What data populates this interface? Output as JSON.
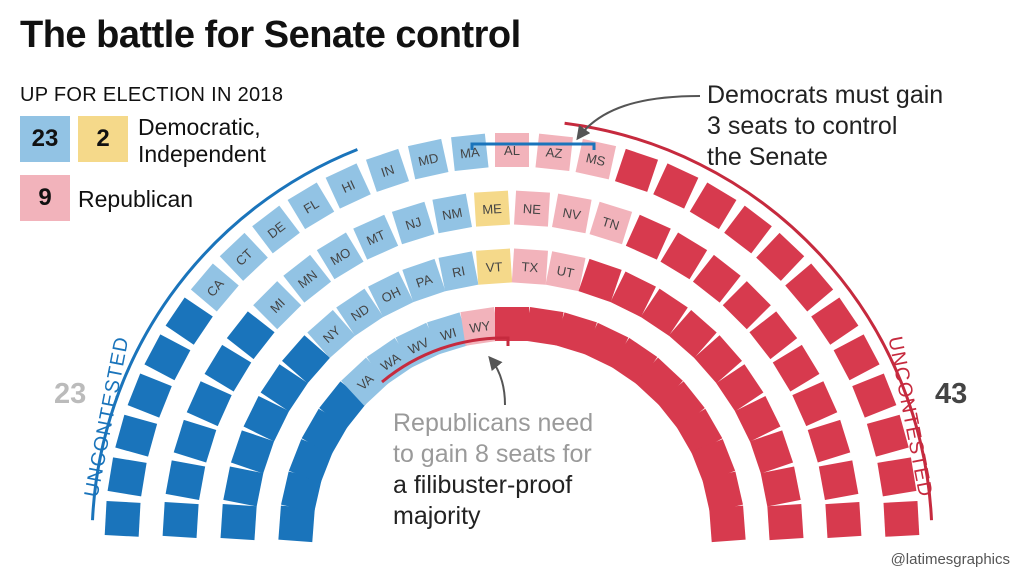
{
  "title": "The battle for Senate control",
  "legend": {
    "heading": "UP FOR ELECTION IN 2018",
    "items": [
      {
        "count": "23",
        "color": "#92c3e4"
      },
      {
        "count": "2",
        "color": "#f5d98a"
      },
      {
        "count": "9",
        "color": "#f2b3bb"
      }
    ],
    "dem_ind_label": [
      "Democratic,",
      "Independent"
    ],
    "rep_label": "Republican"
  },
  "side_labels": {
    "left_total": "23",
    "right_total": "43",
    "left_uncontested": "UNCONTESTED",
    "right_uncontested": "UNCONTESTED"
  },
  "annotations": {
    "democrats": [
      "Democrats must gain",
      "3 seats to control",
      "the Senate"
    ],
    "republicans": [
      "Republicans need",
      "to gain 8 seats for",
      "a filibuster-proof",
      "majority"
    ]
  },
  "credit": "@latimesgraphics",
  "colors": {
    "dem_uncontested": "#1a74bb",
    "dem_up": "#92c3e4",
    "ind_up": "#f5d98a",
    "rep_up": "#f2b3bb",
    "rep_uncontested": "#d73a4e",
    "arrow_blue": "#1a74bb",
    "arrow_red": "#c62a3e"
  },
  "chart_data": {
    "type": "hemicycle",
    "total_seats": 100,
    "segments": [
      {
        "party": "Democratic",
        "status": "uncontested",
        "seats": 23
      },
      {
        "party": "Democratic",
        "status": "up for election 2018",
        "seats": 23
      },
      {
        "party": "Independent",
        "status": "up for election 2018",
        "seats": 2
      },
      {
        "party": "Republican",
        "status": "up for election 2018",
        "seats": 9
      },
      {
        "party": "Republican",
        "status": "uncontested",
        "seats": 43
      }
    ],
    "seats_up_for_election": [
      {
        "state": "VA",
        "party": "D"
      },
      {
        "state": "WA",
        "party": "D"
      },
      {
        "state": "WV",
        "party": "D"
      },
      {
        "state": "WI",
        "party": "D"
      },
      {
        "state": "NY",
        "party": "D"
      },
      {
        "state": "ND",
        "party": "D"
      },
      {
        "state": "OH",
        "party": "D"
      },
      {
        "state": "PA",
        "party": "D"
      },
      {
        "state": "RI",
        "party": "D"
      },
      {
        "state": "VT",
        "party": "I"
      },
      {
        "state": "MI",
        "party": "D"
      },
      {
        "state": "MN",
        "party": "D"
      },
      {
        "state": "MO",
        "party": "D"
      },
      {
        "state": "MT",
        "party": "D"
      },
      {
        "state": "NJ",
        "party": "D"
      },
      {
        "state": "NM",
        "party": "D"
      },
      {
        "state": "ME",
        "party": "I"
      },
      {
        "state": "CA",
        "party": "D"
      },
      {
        "state": "CT",
        "party": "D"
      },
      {
        "state": "DE",
        "party": "D"
      },
      {
        "state": "FL",
        "party": "D"
      },
      {
        "state": "HI",
        "party": "D"
      },
      {
        "state": "IN",
        "party": "D"
      },
      {
        "state": "MD",
        "party": "D"
      },
      {
        "state": "MA",
        "party": "D"
      },
      {
        "state": "AL",
        "party": "R"
      },
      {
        "state": "AZ",
        "party": "R"
      },
      {
        "state": "MS",
        "party": "R"
      },
      {
        "state": "NE",
        "party": "R"
      },
      {
        "state": "NV",
        "party": "R"
      },
      {
        "state": "TN",
        "party": "R"
      },
      {
        "state": "TX",
        "party": "R"
      },
      {
        "state": "UT",
        "party": "R"
      },
      {
        "state": "WY",
        "party": "R"
      }
    ]
  }
}
